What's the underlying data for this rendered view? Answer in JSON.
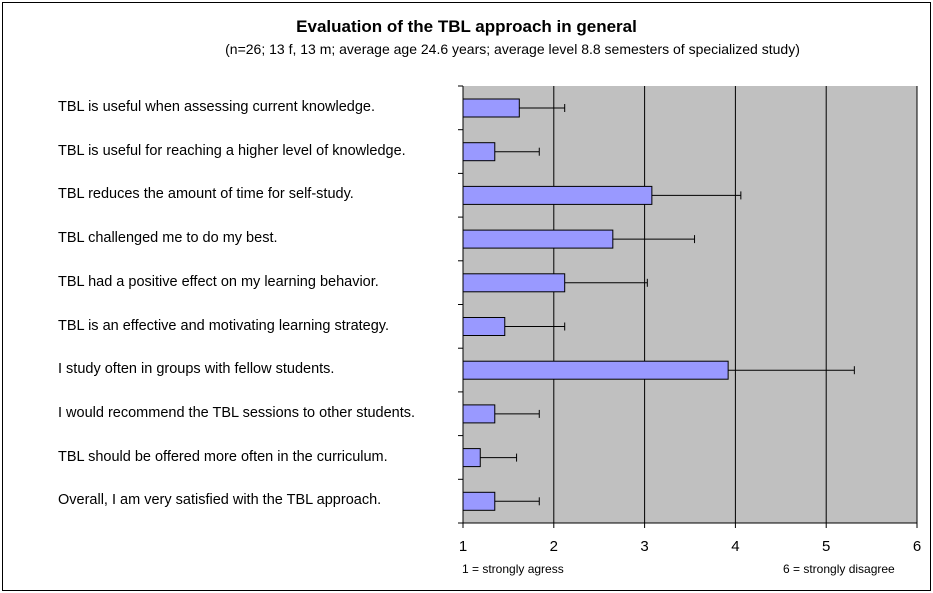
{
  "chart_data": {
    "type": "bar",
    "orientation": "horizontal",
    "title": "Evaluation of the TBL approach in general",
    "subtitle": "(n=26; 13 f, 13 m; average age 24.6 years; average level 8.8 semesters of specialized study)",
    "categories": [
      "TBL is useful when assessing current knowledge.",
      "TBL is useful for reaching a higher level of knowledge.",
      "TBL reduces the amount of time for self-study.",
      "TBL challenged me to do my best.",
      "TBL had a positive effect on my learning behavior.",
      "TBL is an effective and motivating learning strategy.",
      "I study often in groups with fellow students.",
      "I would recommend the TBL sessions to other students.",
      "TBL should be offered more often in the curriculum.",
      "Overall, I am very satisfied with the TBL approach."
    ],
    "values": [
      1.62,
      1.35,
      3.08,
      2.65,
      2.12,
      1.46,
      3.92,
      1.35,
      1.19,
      1.35
    ],
    "error_upper": [
      2.12,
      1.84,
      4.06,
      3.55,
      3.03,
      2.12,
      5.31,
      1.84,
      1.59,
      1.84
    ],
    "xlim": [
      1,
      6
    ],
    "xticks": [
      "1",
      "2",
      "3",
      "4",
      "5",
      "6"
    ],
    "scale_low_label": "1 = strongly agress",
    "scale_high_label": "6 = strongly disagree",
    "grid": true,
    "colors": {
      "bar_fill": "#9999ff",
      "bar_stroke": "#000000",
      "plot_background": "#c0c0c0",
      "gridline": "#000000"
    }
  }
}
